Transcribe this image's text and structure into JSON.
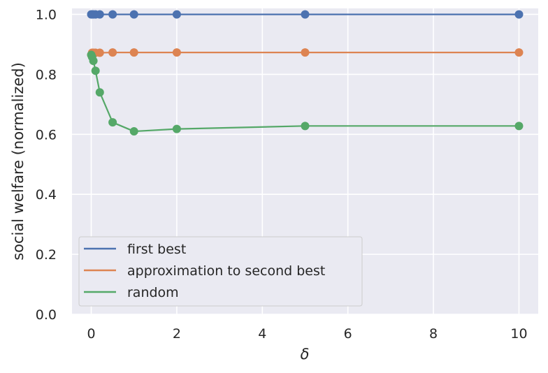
{
  "chart_data": {
    "type": "line",
    "title": "",
    "xlabel": "δ",
    "ylabel": "social welfare (normalized)",
    "xlim": [
      -0.45,
      10.45
    ],
    "ylim": [
      0.0,
      1.02
    ],
    "xticks": [
      0,
      2,
      4,
      6,
      8,
      10
    ],
    "yticks": [
      0.0,
      0.2,
      0.4,
      0.6,
      0.8,
      1.0
    ],
    "xtick_labels": [
      "0",
      "2",
      "4",
      "6",
      "8",
      "10"
    ],
    "ytick_labels": [
      "0.0",
      "0.2",
      "0.4",
      "0.6",
      "0.8",
      "1.0"
    ],
    "grid": true,
    "legend_position": "lower-left",
    "x": [
      0,
      0.02,
      0.05,
      0.1,
      0.2,
      0.5,
      1,
      2,
      5,
      10
    ],
    "series": [
      {
        "name": "first best",
        "color": "#4c72b0",
        "values": [
          1.0,
          1.0,
          1.0,
          1.0,
          1.0,
          1.0,
          1.0,
          1.0,
          1.0,
          1.0
        ]
      },
      {
        "name": "approximation to second best",
        "color": "#dd8452",
        "values": [
          0.865,
          0.872,
          0.872,
          0.872,
          0.872,
          0.873,
          0.873,
          0.873,
          0.873,
          0.873
        ]
      },
      {
        "name": "random",
        "color": "#55a868",
        "values": [
          0.865,
          0.858,
          0.845,
          0.812,
          0.74,
          0.64,
          0.61,
          0.618,
          0.628,
          0.628
        ]
      }
    ]
  }
}
